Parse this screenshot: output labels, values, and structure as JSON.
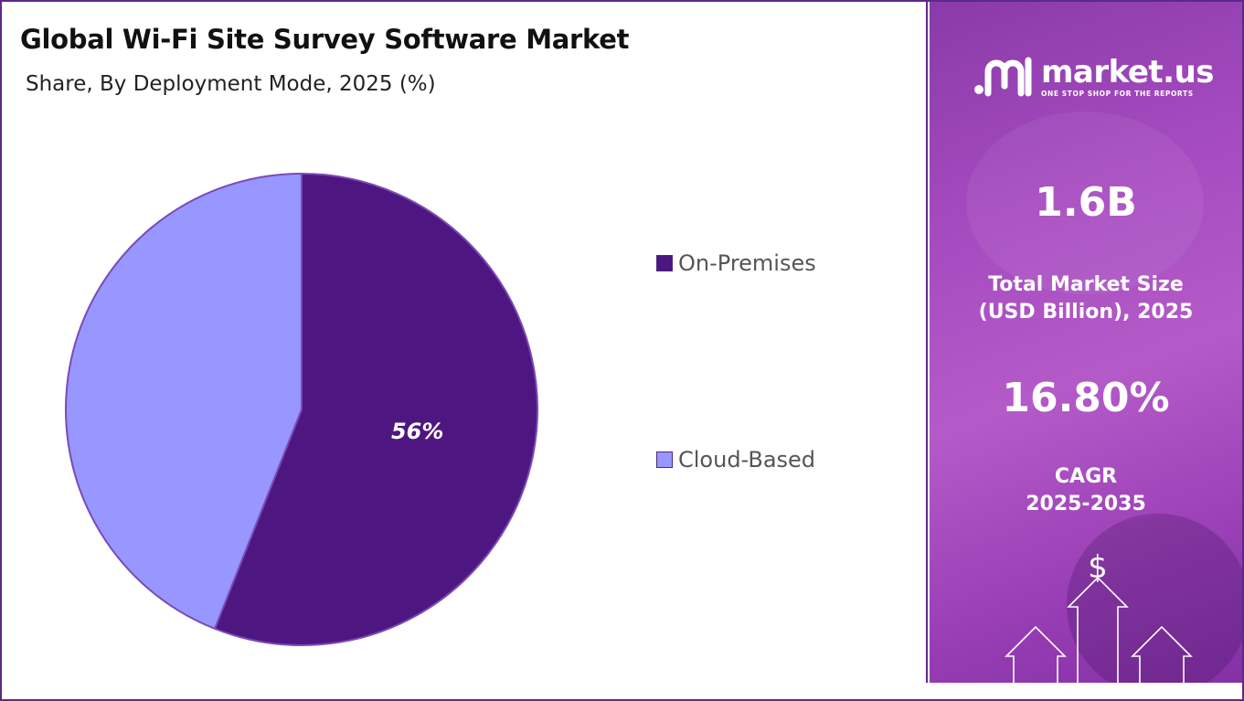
{
  "chart_data": {
    "type": "pie",
    "title": "Global Wi-Fi Site Survey Software Market",
    "subtitle": "Share, By Deployment Mode, 2025 (%)",
    "slices": [
      {
        "name": "On-Premises",
        "value": 56,
        "label": "56%",
        "color": "#4e1680"
      },
      {
        "name": "Cloud-Based",
        "value": 44,
        "label": "",
        "color": "#9896ff"
      }
    ],
    "legend_position": "right"
  },
  "sidebar": {
    "brand_name": "market.us",
    "brand_tagline": "ONE STOP SHOP FOR THE REPORTS",
    "market_size_value": "1.6B",
    "market_size_label_line1": "Total Market Size",
    "market_size_label_line2": "(USD Billion), 2025",
    "cagr_value": "16.80%",
    "cagr_label_line1": "CAGR",
    "cagr_label_line2": "2025-2035",
    "icon_glyph": "$"
  },
  "colors": {
    "border": "#5a2a8a",
    "panel_gradient_start": "#8a3aa8",
    "panel_gradient_end": "#8430a6"
  }
}
